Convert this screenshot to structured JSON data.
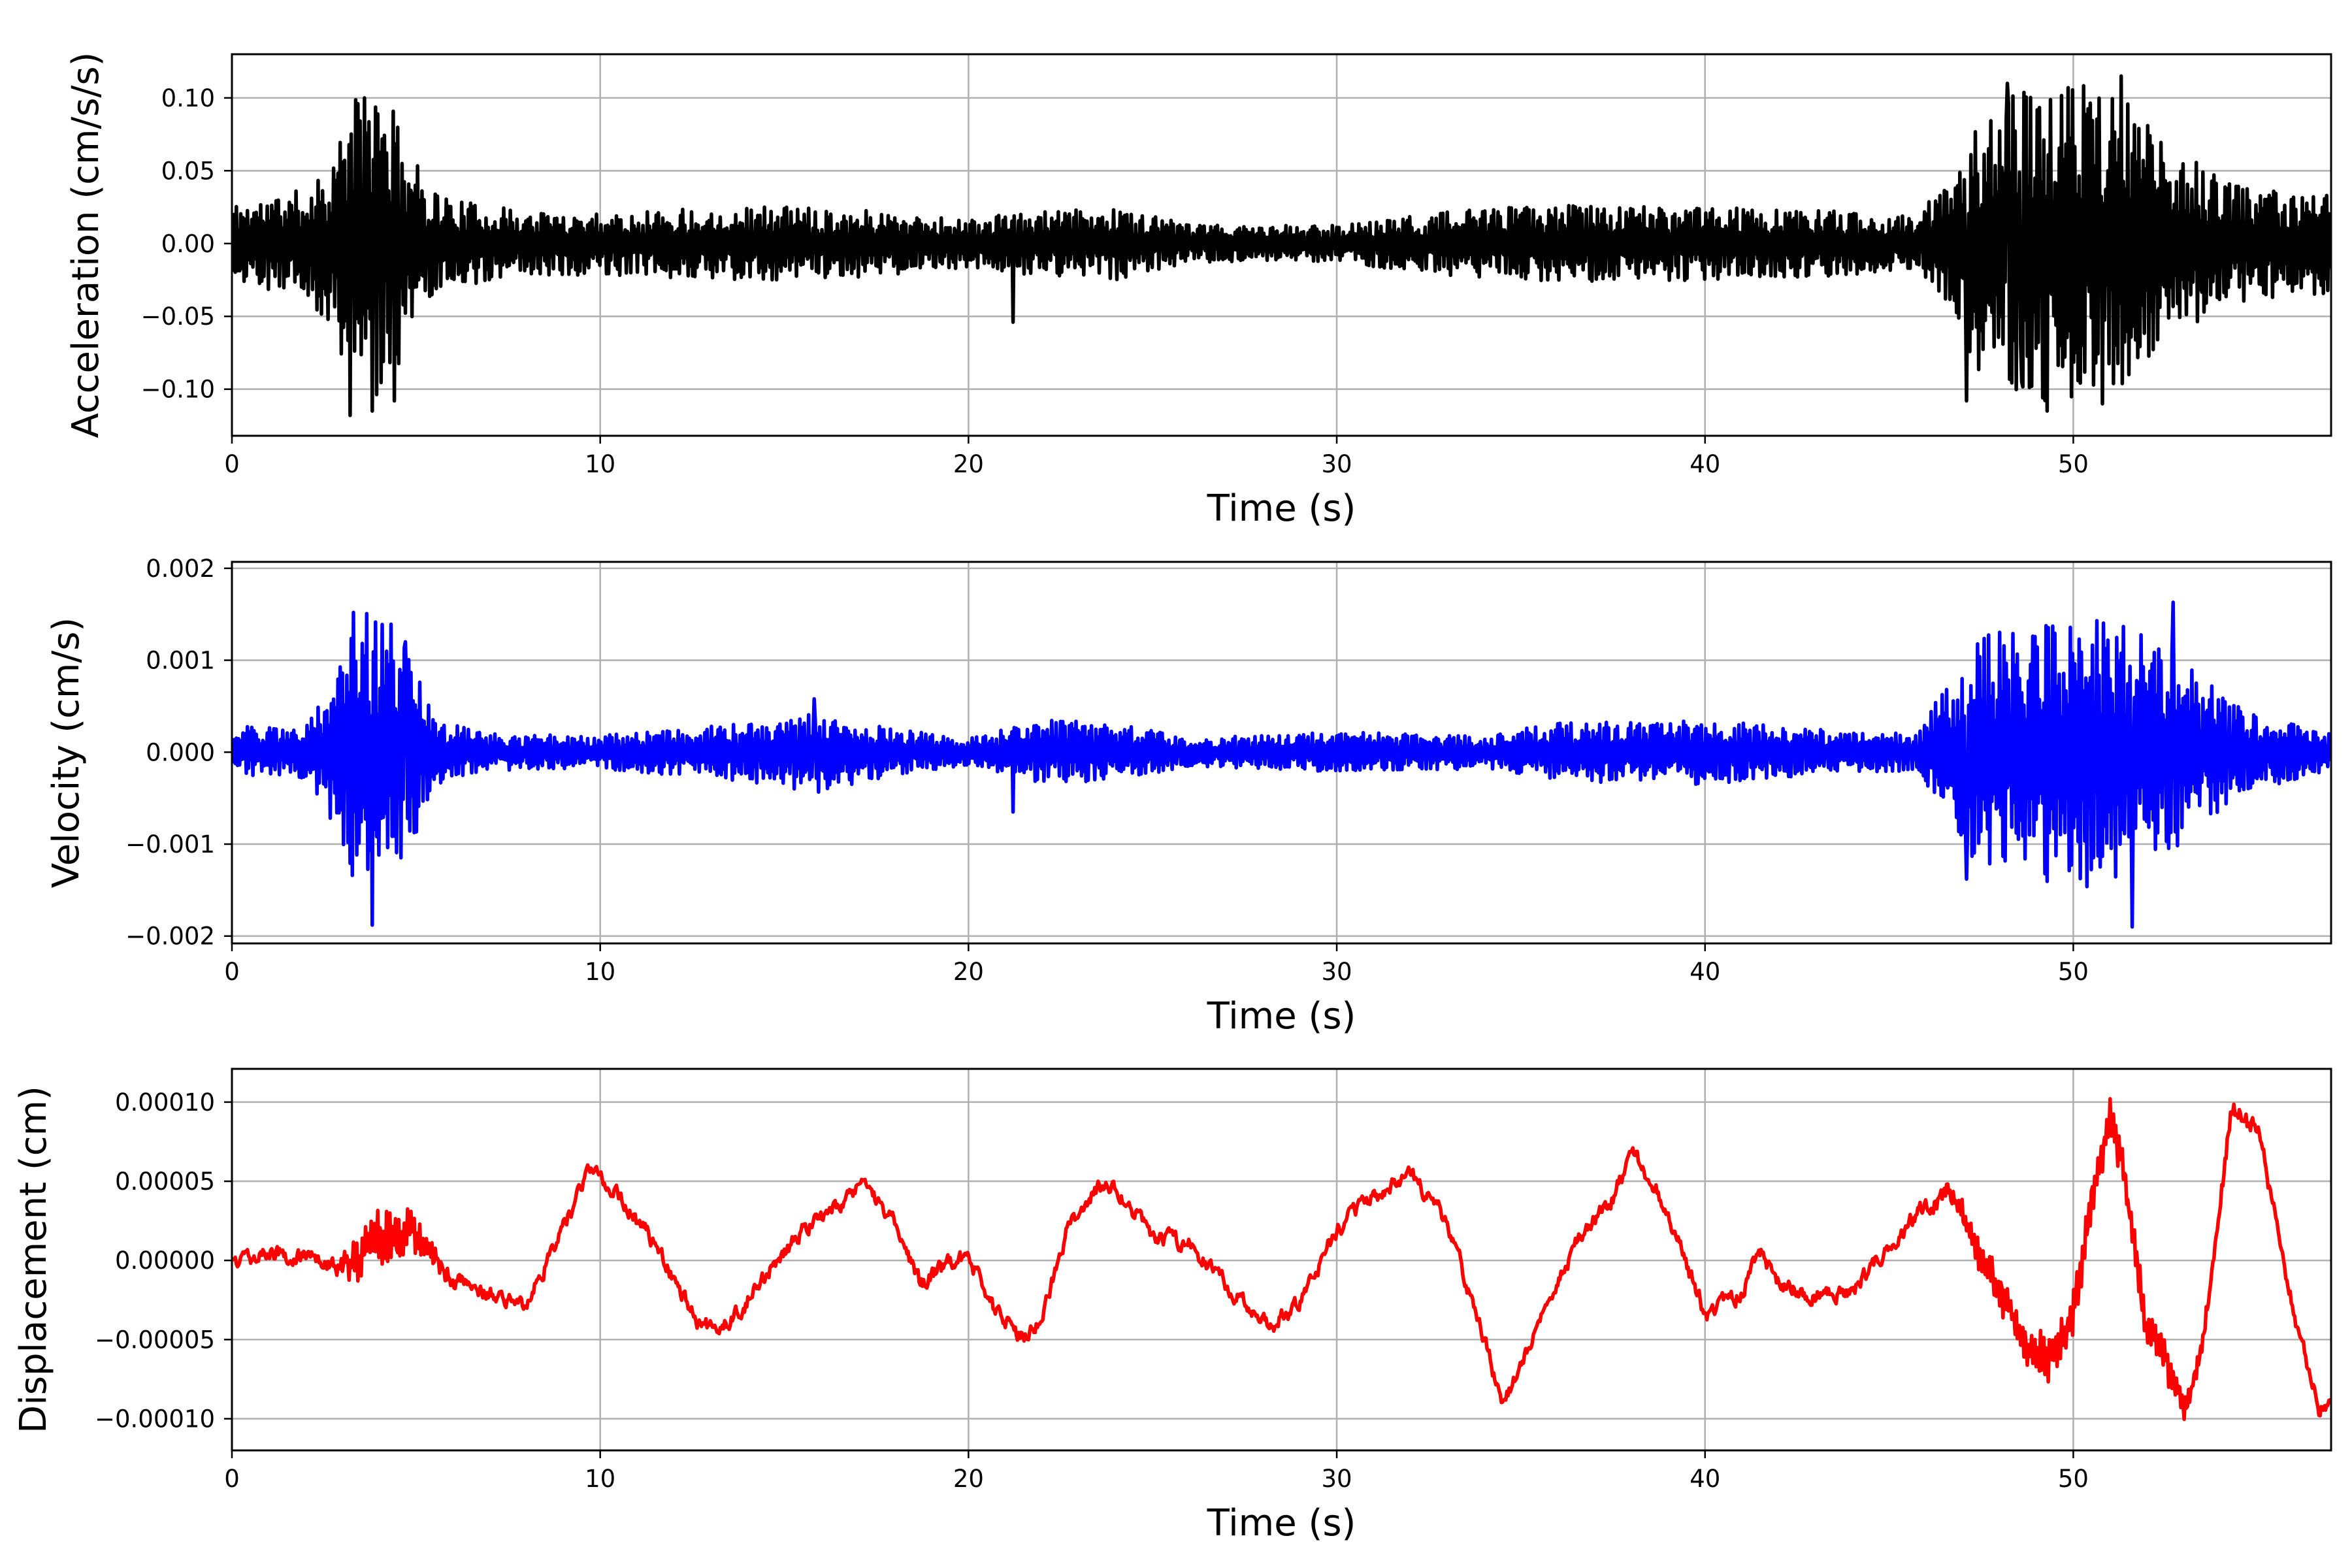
{
  "chart_data": [
    {
      "type": "line",
      "id": "acceleration",
      "xlabel": "Time (s)",
      "ylabel": "Acceleration (cm/s/s)",
      "xlim": [
        0,
        57
      ],
      "ylim": [
        -0.132,
        0.13
      ],
      "xticks": [
        0,
        10,
        20,
        30,
        40,
        50
      ],
      "xtick_labels": [
        "0",
        "10",
        "20",
        "30",
        "40",
        "50"
      ],
      "yticks": [
        -0.1,
        -0.05,
        0.0,
        0.05,
        0.1
      ],
      "ytick_labels": [
        "−0.10",
        "−0.05",
        "0.00",
        "0.05",
        "0.10"
      ],
      "grid": true,
      "color": "#000000",
      "noise_seed": 11,
      "envelope": {
        "t": [
          0,
          1,
          2,
          2.7,
          3.3,
          4.0,
          4.6,
          5.2,
          6,
          8,
          10,
          12,
          15,
          18,
          20,
          21,
          24,
          26,
          28,
          30,
          33,
          36,
          40,
          44,
          45.8,
          46.6,
          47.5,
          49,
          50.5,
          51.5,
          52.5,
          54,
          56,
          57
        ],
        "v": [
          0.028,
          0.032,
          0.038,
          0.06,
          0.1,
          0.11,
          0.08,
          0.045,
          0.03,
          0.022,
          0.022,
          0.024,
          0.026,
          0.022,
          0.016,
          0.02,
          0.025,
          0.013,
          0.012,
          0.013,
          0.022,
          0.027,
          0.025,
          0.022,
          0.018,
          0.05,
          0.09,
          0.11,
          0.11,
          0.1,
          0.07,
          0.045,
          0.035,
          0.035
        ]
      },
      "samples": {
        "t": [
          3.2,
          3.6,
          3.8,
          4.4,
          47.1,
          48.2,
          48.6,
          49.3,
          50.8,
          51.3,
          51.5,
          21.2
        ],
        "v": [
          -0.118,
          0.1,
          -0.115,
          -0.108,
          -0.108,
          0.11,
          -0.095,
          -0.115,
          -0.11,
          0.115,
          -0.09,
          -0.054
        ]
      }
    },
    {
      "type": "line",
      "id": "velocity",
      "xlabel": "Time (s)",
      "ylabel": "Velocity (cm/s)",
      "xlim": [
        0,
        57
      ],
      "ylim": [
        -0.00208,
        0.00207
      ],
      "xticks": [
        0,
        10,
        20,
        30,
        40,
        50
      ],
      "xtick_labels": [
        "0",
        "10",
        "20",
        "30",
        "40",
        "50"
      ],
      "yticks": [
        -0.002,
        -0.001,
        0.0,
        0.001,
        0.002
      ],
      "ytick_labels": [
        "−0.002",
        "−0.001",
        "0.000",
        "0.001",
        "0.002"
      ],
      "grid": true,
      "color": "#0000ff",
      "noise_seed": 29,
      "envelope": {
        "t": [
          0,
          2,
          2.8,
          3.3,
          4,
          4.8,
          5.5,
          7,
          10,
          14,
          16,
          18,
          20,
          22,
          24,
          26,
          30,
          34,
          36,
          40,
          44,
          45.8,
          46.6,
          47.5,
          49,
          51,
          52.5,
          53.5,
          55,
          57
        ],
        "v": [
          0.00028,
          0.0003,
          0.0008,
          0.0015,
          0.0016,
          0.0011,
          0.00035,
          0.0002,
          0.00018,
          0.00032,
          0.00045,
          0.00025,
          0.00015,
          0.00035,
          0.00032,
          0.00015,
          0.00022,
          0.00018,
          0.00032,
          0.00035,
          0.00022,
          0.0002,
          0.0008,
          0.0013,
          0.0014,
          0.0015,
          0.0012,
          0.0008,
          0.0004,
          0.0002
        ]
      },
      "samples": {
        "t": [
          3.3,
          3.8,
          4.7,
          47.1,
          51.6,
          52.7,
          21.2,
          15.8
        ],
        "v": [
          0.00152,
          -0.00188,
          0.0012,
          -0.00138,
          -0.0019,
          0.00163,
          -0.00065,
          0.00058
        ]
      }
    },
    {
      "type": "line",
      "id": "displacement",
      "xlabel": "Time (s)",
      "ylabel": "Displacement (cm)",
      "xlim": [
        0,
        57
      ],
      "ylim": [
        -0.00012,
        0.000121
      ],
      "xticks": [
        0,
        10,
        20,
        30,
        40,
        50
      ],
      "xtick_labels": [
        "0",
        "10",
        "20",
        "30",
        "40",
        "50"
      ],
      "yticks": [
        -0.0001,
        -5e-05,
        0.0,
        5e-05,
        0.0001
      ],
      "ytick_labels": [
        "−0.00010",
        "−0.00005",
        "0.00000",
        "0.00005",
        "0.00010"
      ],
      "grid": true,
      "color": "#ff0000",
      "noise_seed": 47,
      "noise_level": 4e-06,
      "burst": {
        "t": [
          0,
          2.8,
          3.3,
          4.0,
          4.7,
          5.5,
          6.5,
          46,
          47,
          48,
          49.5,
          50.5,
          51.5,
          52.5,
          53.5,
          57
        ],
        "v": [
          0.0,
          0.0,
          1.5e-05,
          2e-05,
          2e-05,
          6e-06,
          0.0,
          0.0,
          8e-06,
          1.4e-05,
          1.6e-05,
          1.4e-05,
          1.2e-05,
          1.2e-05,
          4e-06,
          0.0
        ]
      },
      "trend": {
        "t": [
          0,
          1,
          2,
          3,
          4,
          5,
          6,
          7,
          8,
          9,
          9.7,
          10.5,
          11.5,
          12.7,
          13.5,
          14.5,
          15.5,
          16.5,
          17.1,
          18,
          18.7,
          19.5,
          20,
          20.8,
          21.5,
          22,
          22.7,
          23.5,
          24,
          25,
          26,
          27,
          28.2,
          29,
          30,
          31,
          32,
          33,
          34,
          34.5,
          35.5,
          36.5,
          37.5,
          38,
          39,
          40,
          41,
          41.5,
          42,
          43,
          44,
          45,
          46,
          46.7,
          47.3,
          48,
          48.7,
          49.3,
          50,
          50.5,
          51,
          51.3,
          51.6,
          52,
          52.5,
          53,
          53.5,
          54.3,
          55,
          56,
          56.7,
          57
        ],
        "v": [
          0.0,
          5e-06,
          2e-06,
          -5e-06,
          1.5e-05,
          1.8e-05,
          -1.2e-05,
          -2e-05,
          -2.8e-05,
          2e-05,
          6e-05,
          4e-05,
          1e-05,
          -4.2e-05,
          -4e-05,
          -1e-05,
          2e-05,
          3.5e-05,
          5e-05,
          2.5e-05,
          -1.5e-05,
          -2e-06,
          2e-06,
          -3.5e-05,
          -5e-05,
          -3.5e-05,
          2e-05,
          4.5e-05,
          4.5e-05,
          1.5e-05,
          1e-05,
          -1.5e-05,
          -4.2e-05,
          -2.5e-05,
          2e-05,
          4e-05,
          5.5e-05,
          2.5e-05,
          -5e-05,
          -9.2e-05,
          -4e-05,
          1e-05,
          4e-05,
          7e-05,
          3e-05,
          -3.5e-05,
          -2e-05,
          5e-06,
          -1.5e-05,
          -2.2e-05,
          -2e-05,
          1e-05,
          3.5e-05,
          4.5e-05,
          1e-05,
          -2e-05,
          -5.5e-05,
          -6.5e-05,
          -3.5e-05,
          4e-05,
          9e-05,
          6.5e-05,
          2e-05,
          -4.5e-05,
          -6e-05,
          -9.5e-05,
          -5.5e-05,
          9.5e-05,
          8.5e-05,
          -3.5e-05,
          -9.5e-05,
          -9e-05
        ]
      }
    }
  ]
}
